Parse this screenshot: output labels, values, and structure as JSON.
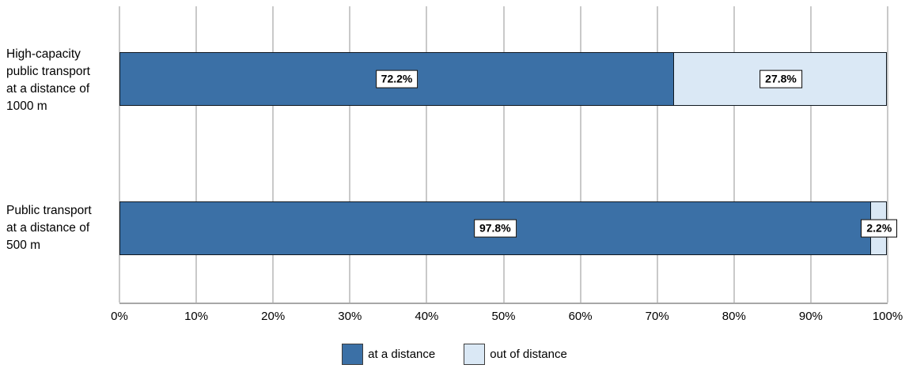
{
  "chart_data": {
    "type": "bar",
    "orientation": "horizontal",
    "stacked": true,
    "title": "",
    "xlabel": "",
    "ylabel": "",
    "xlim": [
      0,
      100
    ],
    "grid": "vertical",
    "legend_position": "bottom",
    "categories": [
      "High-capacity public transport at a distance of 1000 m",
      "Public transport at a distance of 500 m"
    ],
    "categories_display": [
      "High-capacity\npublic transport\nat a distance of\n1000 m",
      "Public transport\nat a distance of\n500 m"
    ],
    "series": [
      {
        "name": "at a distance",
        "color": "#3B70A6",
        "values": [
          72.2,
          97.8
        ]
      },
      {
        "name": "out of distance",
        "color": "#DAE8F5",
        "values": [
          27.8,
          2.2
        ]
      }
    ],
    "data_labels": [
      [
        "72.2%",
        "27.8%"
      ],
      [
        "97.8%",
        "2.2%"
      ]
    ],
    "x_ticks": [
      "0%",
      "10%",
      "20%",
      "30%",
      "40%",
      "50%",
      "60%",
      "70%",
      "80%",
      "90%",
      "100%"
    ]
  }
}
